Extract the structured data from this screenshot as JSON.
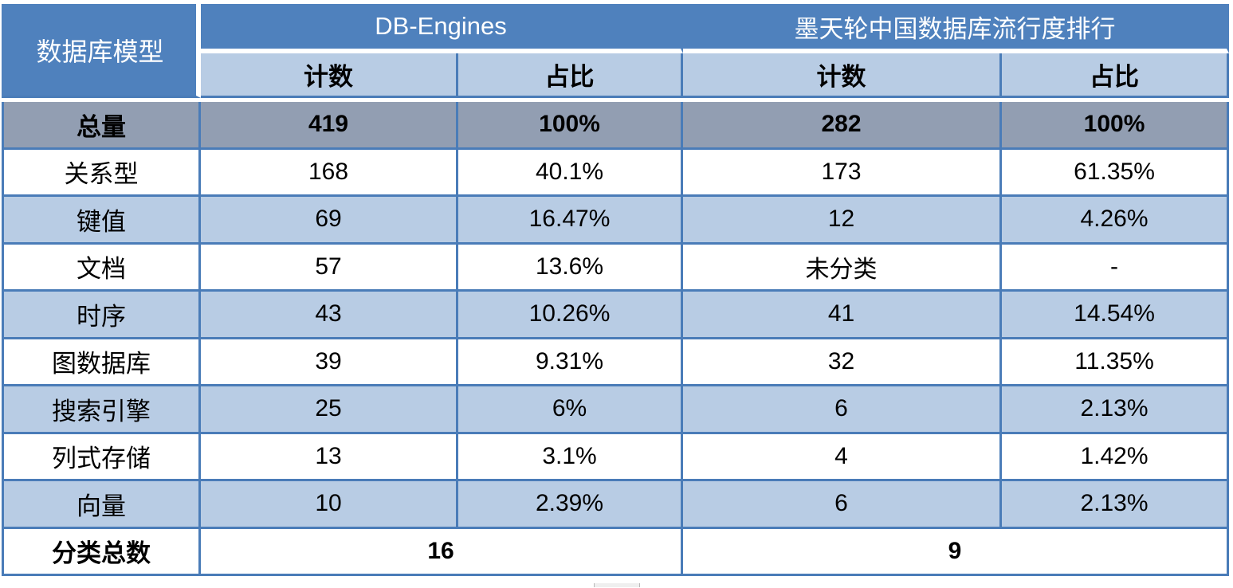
{
  "chart_data": {
    "type": "table",
    "corner_header": "数据库模型",
    "groups": [
      {
        "label": "DB-Engines",
        "subcolumns": [
          "计数",
          "占比"
        ]
      },
      {
        "label": "墨天轮中国数据库流行度排行",
        "subcolumns": [
          "计数",
          "占比"
        ]
      }
    ],
    "total_row": {
      "label": "总量",
      "values": [
        "419",
        "100%",
        "282",
        "100%"
      ]
    },
    "body_rows": [
      {
        "label": "关系型",
        "values": [
          "168",
          "40.1%",
          "173",
          "61.35%"
        ]
      },
      {
        "label": "键值",
        "values": [
          "69",
          "16.47%",
          "12",
          "4.26%"
        ]
      },
      {
        "label": "文档",
        "values": [
          "57",
          "13.6%",
          "未分类",
          "-"
        ]
      },
      {
        "label": "时序",
        "values": [
          "43",
          "10.26%",
          "41",
          "14.54%"
        ]
      },
      {
        "label": "图数据库",
        "values": [
          "39",
          "9.31%",
          "32",
          "11.35%"
        ]
      },
      {
        "label": "搜索引擎",
        "values": [
          "25",
          "6%",
          "6",
          "2.13%"
        ]
      },
      {
        "label": "列式存储",
        "values": [
          "13",
          "3.1%",
          "4",
          "1.42%"
        ]
      },
      {
        "label": "向量",
        "values": [
          "10",
          "2.39%",
          "6",
          "2.13%"
        ]
      }
    ],
    "footer_row": {
      "label": "分类总数",
      "db_engines_total": "16",
      "motianlun_total": "9"
    }
  },
  "colors": {
    "header_blue": "#4f81bd",
    "band_light_blue": "#b8cce4",
    "total_row_gray": "#929eb2",
    "border_blue": "#4a7cb8",
    "header_text": "#ffffff",
    "body_text": "#000000",
    "row_white": "#ffffff"
  }
}
